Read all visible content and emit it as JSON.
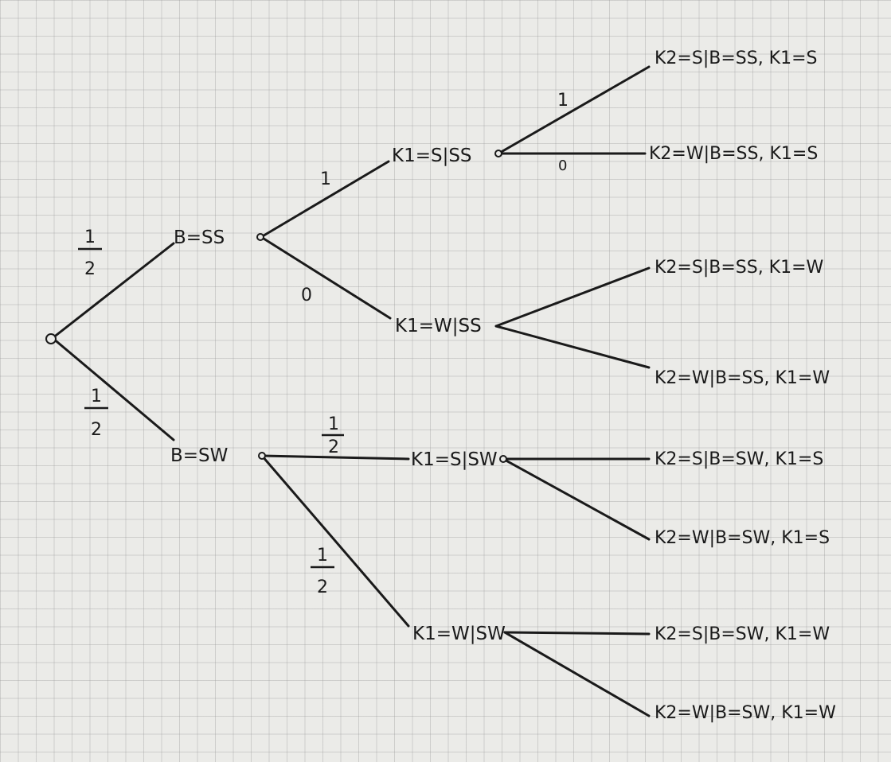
{
  "nodes": {
    "root": "",
    "b_ss": "B=SS",
    "b_sw": "B=SW",
    "k1_s_ss": "K1=S|SS",
    "k1_w_ss": "K1=W|SS",
    "k1_s_sw": "K1=S|SW",
    "k1_w_sw": "K1=W|SW"
  },
  "leaves": {
    "l1": "K2=S|B=SS, K1=S",
    "l2": "K2=W|B=SS, K1=S",
    "l3": "K2=S|B=SS, K1=W",
    "l4": "K2=W|B=SS, K1=W",
    "l5": "K2=S|B=SW, K1=S",
    "l6": "K2=W|B=SW, K1=S",
    "l7": "K2=S|B=SW, K1=W",
    "l8": "K2=W|B=SW, K1=W"
  },
  "probabilities": {
    "root_bss": {
      "num": "1",
      "den": "2"
    },
    "root_bsw": {
      "num": "1",
      "den": "2"
    },
    "bss_k1s": "1",
    "bss_k1w": "0",
    "bsw_k1s": {
      "num": "1",
      "den": "2"
    },
    "bsw_k1w": {
      "num": "1",
      "den": "2"
    },
    "k1s_ss_k2s": "1",
    "k1s_ss_k2w": "0"
  }
}
